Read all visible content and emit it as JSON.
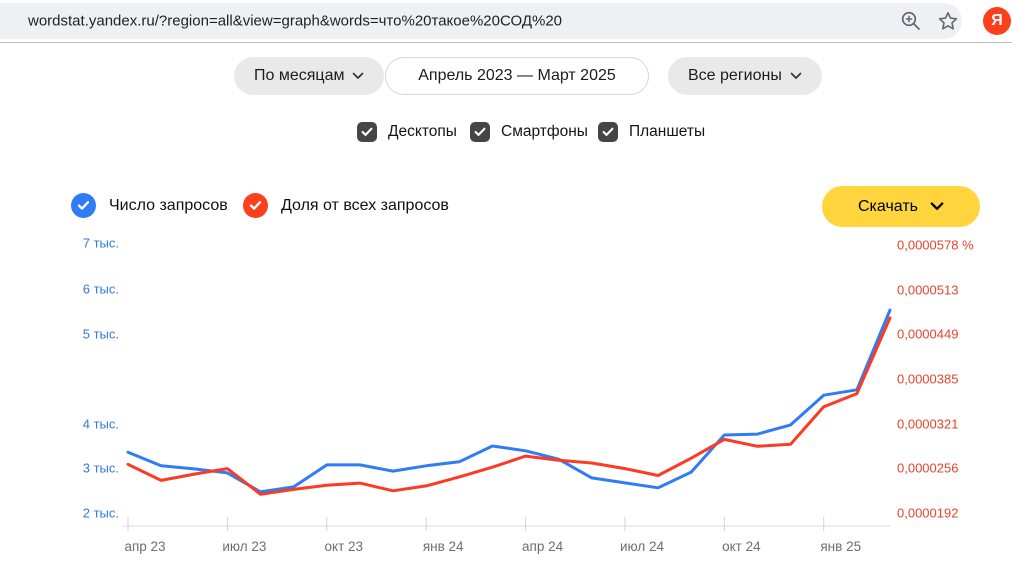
{
  "browser": {
    "url": "wordstat.yandex.ru/?region=all&view=graph&words=что%20такое%20СОД%20",
    "logo_letter": "Я"
  },
  "controls": {
    "period_label": "По месяцам",
    "date_range": "Апрель 2023 — Март 2025",
    "region_label": "Все регионы",
    "devices": [
      {
        "label": "Десктопы",
        "checked": true
      },
      {
        "label": "Смартфоны",
        "checked": true
      },
      {
        "label": "Планшеты",
        "checked": true
      }
    ]
  },
  "legend": [
    {
      "label": "Число запросов",
      "color": "#2f7cf5",
      "checked": true
    },
    {
      "label": "Доля от всех запросов",
      "color": "#fc3f1d",
      "checked": true
    }
  ],
  "download_label": "Скачать",
  "chart_data": {
    "type": "line",
    "months": [
      "апр 23",
      "май 23",
      "июн 23",
      "июл 23",
      "авг 23",
      "сен 23",
      "окт 23",
      "ноя 23",
      "дек 23",
      "янв 24",
      "фев 24",
      "мар 24",
      "апр 24",
      "май 24",
      "июн 24",
      "июл 24",
      "авг 24",
      "сен 24",
      "окт 24",
      "ноя 24",
      "дек 24",
      "янв 25",
      "фев 25",
      "мар 25"
    ],
    "x_labels": [
      "апр 23",
      "июл 23",
      "окт 23",
      "янв 24",
      "апр 24",
      "июл 24",
      "окт 24",
      "янв 25"
    ],
    "series": [
      {
        "name": "Число запросов",
        "axis": "left",
        "color": "#2f7cf5",
        "values": [
          3360,
          3050,
          2980,
          2890,
          2470,
          2580,
          3070,
          3070,
          2930,
          3050,
          3140,
          3500,
          3390,
          3200,
          2780,
          2670,
          2560,
          2910,
          3750,
          3770,
          3980,
          4320,
          4380,
          5530
        ]
      },
      {
        "name": "Доля от всех запросов",
        "axis": "right",
        "color": "#fb3b24",
        "values": [
          2.62e-05,
          2.39e-05,
          2.48e-05,
          2.56e-05,
          2.19e-05,
          2.26e-05,
          2.32e-05,
          2.35e-05,
          2.24e-05,
          2.31e-05,
          2.44e-05,
          2.58e-05,
          2.74e-05,
          2.68e-05,
          2.64e-05,
          2.56e-05,
          2.46e-05,
          2.71e-05,
          2.98e-05,
          2.88e-05,
          2.91e-05,
          3.45e-05,
          3.64e-05,
          4.73e-05
        ]
      }
    ],
    "left_axis": {
      "color": "#3277e8",
      "labels": [
        "7 тыс.",
        "6 тыс.",
        "5 тыс.",
        "4 тыс.",
        "3 тыс.",
        "2 тыс."
      ]
    },
    "right_axis": {
      "color": "#e8432c",
      "labels": [
        "0,0000578 %",
        "0,0000513",
        "0,0000449",
        "0,0000385",
        "0,0000321",
        "0,0000256",
        "0,0000192"
      ],
      "range": [
        1.92e-05,
        5.78e-05
      ]
    },
    "grid": false,
    "legend_position": "top-left"
  }
}
